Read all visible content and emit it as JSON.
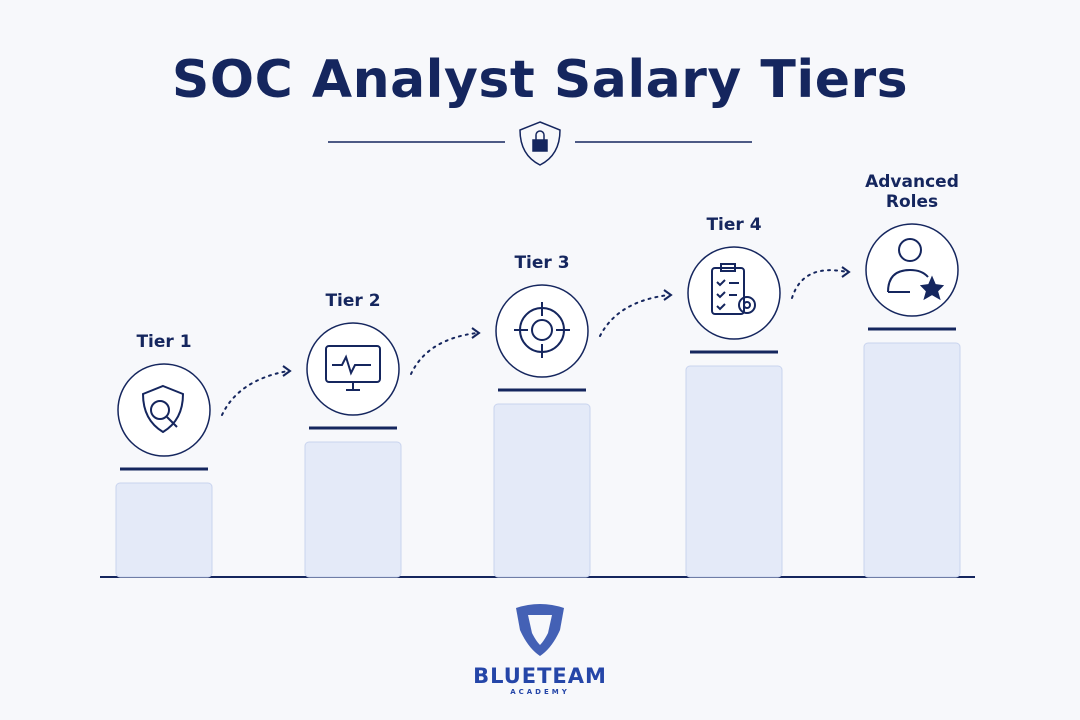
{
  "title": "SOC Analyst Salary Tiers",
  "tiers": [
    {
      "label": "Tier 1"
    },
    {
      "label": "Tier 2"
    },
    {
      "label": "Tier 3"
    },
    {
      "label": "Tier 4"
    },
    {
      "label": "Advanced Roles"
    }
  ],
  "logo": {
    "name": "BLUETEAM",
    "tagline": "ACADEMY"
  }
}
